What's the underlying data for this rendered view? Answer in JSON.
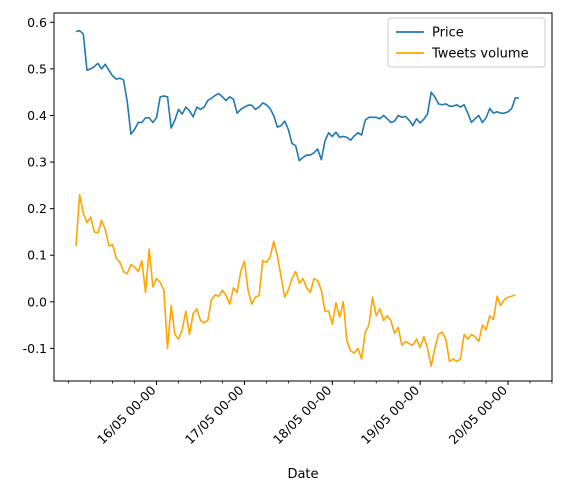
{
  "chart_data": {
    "type": "line",
    "xlabel": "Date",
    "ylabel": "",
    "ylim": [
      -0.17,
      0.62
    ],
    "yticks": [
      -0.1,
      0.0,
      0.1,
      0.2,
      0.3,
      0.4,
      0.5,
      0.6
    ],
    "xlim": [
      "2020-05-14 20:00",
      "2020-05-20 12:00"
    ],
    "xticks": [
      {
        "x": "2020-05-16 00:00",
        "label": "16/05 00-00"
      },
      {
        "x": "2020-05-17 00:00",
        "label": "17/05 00-00"
      },
      {
        "x": "2020-05-18 00:00",
        "label": "18/05 00-00"
      },
      {
        "x": "2020-05-19 00:00",
        "label": "19/05 00-00"
      },
      {
        "x": "2020-05-20 00:00",
        "label": "20/05 00-00"
      }
    ],
    "grid": false,
    "legend": "top-right",
    "x_start": "2020-05-15 02:00",
    "x_step_hours": 1,
    "series": [
      {
        "name": "Price",
        "color": "#1f77b4",
        "values": [
          0.58,
          0.582,
          0.575,
          0.497,
          0.5,
          0.505,
          0.512,
          0.5,
          0.51,
          0.497,
          0.485,
          0.478,
          0.48,
          0.476,
          0.43,
          0.36,
          0.37,
          0.385,
          0.385,
          0.395,
          0.395,
          0.385,
          0.395,
          0.44,
          0.442,
          0.44,
          0.373,
          0.39,
          0.413,
          0.403,
          0.418,
          0.41,
          0.397,
          0.418,
          0.413,
          0.418,
          0.432,
          0.437,
          0.443,
          0.447,
          0.44,
          0.432,
          0.44,
          0.435,
          0.405,
          0.413,
          0.418,
          0.422,
          0.422,
          0.413,
          0.418,
          0.427,
          0.423,
          0.415,
          0.4,
          0.375,
          0.378,
          0.388,
          0.37,
          0.34,
          0.335,
          0.303,
          0.31,
          0.315,
          0.315,
          0.32,
          0.328,
          0.305,
          0.345,
          0.363,
          0.355,
          0.364,
          0.353,
          0.355,
          0.353,
          0.347,
          0.356,
          0.363,
          0.358,
          0.39,
          0.396,
          0.396,
          0.396,
          0.393,
          0.4,
          0.393,
          0.385,
          0.388,
          0.4,
          0.396,
          0.398,
          0.39,
          0.378,
          0.393,
          0.384,
          0.392,
          0.403,
          0.45,
          0.44,
          0.425,
          0.423,
          0.425,
          0.42,
          0.42,
          0.423,
          0.418,
          0.423,
          0.405,
          0.385,
          0.393,
          0.4,
          0.385,
          0.395,
          0.415,
          0.405,
          0.408,
          0.405,
          0.405,
          0.408,
          0.415,
          0.438,
          0.437
        ]
      },
      {
        "name": "Tweets volume",
        "color": "#ffa500",
        "values": [
          0.12,
          0.23,
          0.19,
          0.17,
          0.182,
          0.15,
          0.148,
          0.175,
          0.155,
          0.12,
          0.123,
          0.093,
          0.085,
          0.065,
          0.06,
          0.08,
          0.075,
          0.065,
          0.088,
          0.02,
          0.113,
          0.032,
          0.05,
          0.042,
          0.025,
          -0.1,
          -0.008,
          -0.07,
          -0.08,
          -0.06,
          -0.02,
          -0.07,
          -0.025,
          -0.015,
          -0.04,
          -0.045,
          -0.04,
          0.005,
          0.015,
          0.012,
          0.025,
          0.013,
          -0.005,
          0.03,
          0.02,
          0.065,
          0.087,
          0.025,
          -0.005,
          0.01,
          0.013,
          0.088,
          0.085,
          0.095,
          0.13,
          0.098,
          0.055,
          0.01,
          0.025,
          0.05,
          0.065,
          0.04,
          0.05,
          0.03,
          0.02,
          0.05,
          0.045,
          0.025,
          -0.02,
          -0.02,
          -0.048,
          -0.002,
          -0.033,
          0.0,
          -0.085,
          -0.105,
          -0.11,
          -0.1,
          -0.123,
          -0.065,
          -0.05,
          0.01,
          -0.03,
          -0.015,
          -0.04,
          -0.03,
          -0.04,
          -0.068,
          -0.055,
          -0.093,
          -0.085,
          -0.09,
          -0.093,
          -0.08,
          -0.098,
          -0.075,
          -0.1,
          -0.138,
          -0.1,
          -0.07,
          -0.065,
          -0.08,
          -0.128,
          -0.123,
          -0.128,
          -0.123,
          -0.07,
          -0.08,
          -0.07,
          -0.075,
          -0.085,
          -0.05,
          -0.06,
          -0.03,
          -0.038,
          0.012,
          -0.008,
          0.005,
          0.01,
          0.012,
          0.015
        ]
      }
    ]
  }
}
